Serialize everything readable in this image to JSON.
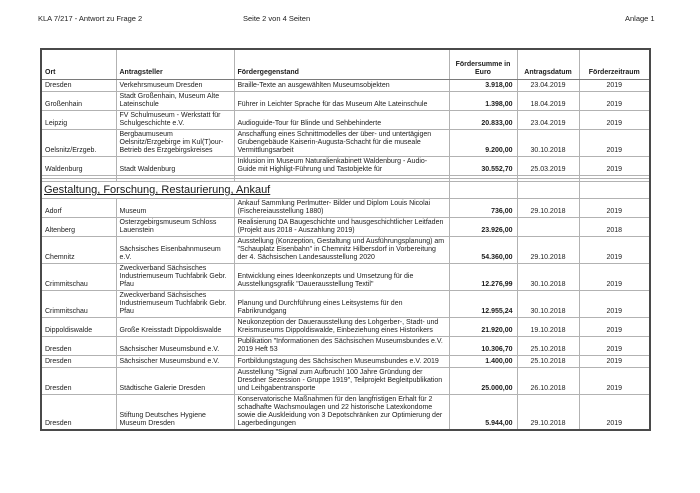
{
  "colors": {
    "text": "#1c1c1c",
    "border_outer": "#4a4a4a",
    "border_inner": "#b2b2b2",
    "page_background": "#ffffff"
  },
  "page_header": {
    "doc_ref": "KLA 7/217 - Antwort zu Frage 2",
    "page_indicator": "Seite 2 von 4 Seiten",
    "annex": "Anlage 1"
  },
  "table": {
    "columns": [
      {
        "key": "ort",
        "label": "Ort"
      },
      {
        "key": "antragsteller",
        "label": "Antragsteller"
      },
      {
        "key": "foerdergegenstand",
        "label": "Fördergegenstand"
      },
      {
        "key": "foerdersumme",
        "label": "Fördersumme in Euro"
      },
      {
        "key": "antragsdatum",
        "label": "Antragsdatum"
      },
      {
        "key": "foerderzeitraum",
        "label": "Förderzeitraum"
      }
    ],
    "rows": [
      {
        "type": "data",
        "ort": "Dresden",
        "antragsteller": "Verkehrsmuseum Dresden",
        "foerdergegenstand": "Braille-Texte an ausgewählten Museumsobjekten",
        "foerdersumme": "3.918,00",
        "antragsdatum": "23.04.2019",
        "foerderzeitraum": "2019"
      },
      {
        "type": "data",
        "ort": "Großenhain",
        "antragsteller": "Stadt Großenhain, Museum Alte Lateinschule",
        "foerdergegenstand": "Führer in Leichter Sprache für das Museum Alte Lateinschule",
        "foerdersumme": "1.398,00",
        "antragsdatum": "18.04.2019",
        "foerderzeitraum": "2019"
      },
      {
        "type": "data",
        "ort": "Leipzig",
        "antragsteller": "FV Schulmuseum - Werkstatt für Schulgeschichte e.V.",
        "foerdergegenstand": "Audioguide-Tour für Blinde und Sehbehinderte",
        "foerdersumme": "20.833,00",
        "antragsdatum": "23.04.2019",
        "foerderzeitraum": "2019"
      },
      {
        "type": "data",
        "ort": "Oelsnitz/Erzgeb.",
        "antragsteller": "Bergbaumuseum Oelsnitz/Erzgebirge im Kul(T)our-Betrieb des Erzgebirgskreises",
        "foerdergegenstand": "Anschaffung eines Schnittmodelles der über- und untertägigen Grubengebäude Kaiserin-Augusta-Schacht für die museale Vermittlungsarbeit",
        "foerdersumme": "9.200,00",
        "antragsdatum": "30.10.2018",
        "foerderzeitraum": "2019"
      },
      {
        "type": "data",
        "ort": "Waldenburg",
        "antragsteller": "Stadt Waldenburg",
        "foerdergegenstand": "Inklusion im Museum Naturalienkabinett Waldenburg - Audio-Guide mit Highligt-Führung und Tastobjekte für",
        "foerdersumme": "30.552,70",
        "antragsdatum": "25.03.2019",
        "foerderzeitraum": "2019"
      },
      {
        "type": "spacer"
      },
      {
        "type": "spacer"
      },
      {
        "type": "section",
        "label": "Gestaltung, Forschung, Restaurierung, Ankauf"
      },
      {
        "type": "data",
        "ort": "Adorf",
        "antragsteller": "Museum",
        "foerdergegenstand": "Ankauf Sammlung Perlmutter- Bilder und Diplom Louis Nicolai (Fischereiausstellung 1880)",
        "foerdersumme": "736,00",
        "antragsdatum": "29.10.2018",
        "foerderzeitraum": "2019"
      },
      {
        "type": "data",
        "ort": "Altenberg",
        "antragsteller": "Osterzgebirgsmuseum Schloss Lauenstein",
        "foerdergegenstand": "Realisierung DA Baugeschichte und hausgeschichtlicher Leitfaden (Projekt aus 2018 - Auszahlung 2019)",
        "foerdersumme": "23.926,00",
        "antragsdatum": "",
        "foerderzeitraum": "2018"
      },
      {
        "type": "data",
        "ort": "Chemnitz",
        "antragsteller": "Sächsisches Eisenbahnmuseum e.V.",
        "foerdergegenstand": "Ausstellung (Konzeption, Gestaltung und Ausführungsplanung) am \"Schauplatz Eisenbahn\" in Chemnitz Hilbersdorf in Vorbereitung der 4. Sächsischen Landesausstellung 2020",
        "foerdersumme": "54.360,00",
        "antragsdatum": "29.10.2018",
        "foerderzeitraum": "2019"
      },
      {
        "type": "data",
        "ort": "Crimmitschau",
        "antragsteller": "Zweckverband Sächsisches Industriemuseum Tuchfabrik Gebr. Pfau",
        "foerdergegenstand": "Entwicklung eines Ideenkonzepts und Umsetzung für die Ausstellungsgrafik \"Dauerausstellung Textil\"",
        "foerdersumme": "12.276,99",
        "antragsdatum": "30.10.2018",
        "foerderzeitraum": "2019"
      },
      {
        "type": "data",
        "ort": "Crimmitschau",
        "antragsteller": "Zweckverband Sächsisches Industriemuseum Tuchfabrik Gebr. Pfau",
        "foerdergegenstand": "Planung und Durchführung eines Leitsystems für den Fabrikrundgang",
        "foerdersumme": "12.955,24",
        "antragsdatum": "30.10.2018",
        "foerderzeitraum": "2019"
      },
      {
        "type": "data",
        "ort": "Dippoldiswalde",
        "antragsteller": "Große Kreisstadt Dippoldiswalde",
        "foerdergegenstand": "Neukonzeption der Dauerausstellung des Lohgerber-, Stadt- und Kreismuseums Dippoldiswalde, Einbeziehung eines Historikers",
        "foerdersumme": "21.920,00",
        "antragsdatum": "19.10.2018",
        "foerderzeitraum": "2019"
      },
      {
        "type": "data",
        "ort": "Dresden",
        "antragsteller": "Sächsischer Museumsbund e.V.",
        "foerdergegenstand": "Publikation \"Informationen des Sächsischen Museumsbundes e.V. 2019 Heft 53",
        "foerdersumme": "10.306,70",
        "antragsdatum": "25.10.2018",
        "foerderzeitraum": "2019"
      },
      {
        "type": "data",
        "ort": "Dresden",
        "antragsteller": "Sächsischer Museumsbund e.V.",
        "foerdergegenstand": "Fortbildungstagung des Sächsischen Museumsbundes e.V. 2019",
        "foerdersumme": "1.400,00",
        "antragsdatum": "25.10.2018",
        "foerderzeitraum": "2019"
      },
      {
        "type": "data",
        "ort": "Dresden",
        "antragsteller": "Städtische Galerie Dresden",
        "foerdergegenstand": "Ausstellung \"Signal zum Aufbruch! 100 Jahre Gründung der Dresdner Sezession - Gruppe 1919\", Teilprojekt Begleitpublikation und Leihgabentransporte",
        "foerdersumme": "25.000,00",
        "antragsdatum": "26.10.2018",
        "foerderzeitraum": "2019"
      },
      {
        "type": "data",
        "ort": "Dresden",
        "antragsteller": "Stiftung Deutsches Hygiene Museum Dresden",
        "foerdergegenstand": "Konservatorische Maßnahmen für den langfristigen Erhalt für 2 schadhafte Wachsmoulagen und 22 historische Latexkondome sowie die Auskleidung von 3 Depotschränken zur Optimierung der Lagerbedingungen",
        "foerdersumme": "5.944,00",
        "antragsdatum": "29.10.2018",
        "foerderzeitraum": "2019"
      }
    ]
  }
}
